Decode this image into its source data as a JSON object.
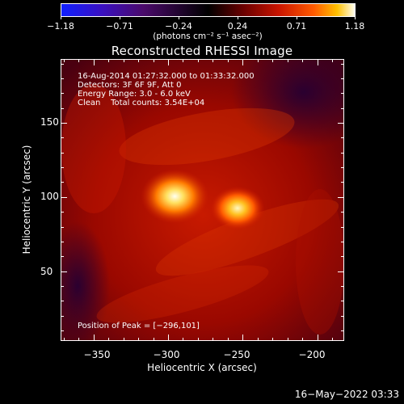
{
  "colorbar": {
    "ticks": [
      "−1.18",
      "−0.71",
      "−0.24",
      "0.24",
      "0.71",
      "1.18"
    ],
    "units": "(photons cm⁻² s⁻¹ asec⁻²)",
    "colors": [
      "#1020ff",
      "#000000",
      "#c81400",
      "#ffc000",
      "#fffff0"
    ]
  },
  "title": "Reconstructed RHESSI Image",
  "info": {
    "line1": "16-Aug-2014 01:27:32.000 to 01:33:32.000",
    "line2": "Detectors: 3F 6F 9F, Att 0",
    "line3": "Energy Range: 3.0 - 6.0 keV",
    "line4": "Clean    Total counts: 3.54E+04"
  },
  "peak": "Position of Peak = [−296,101]",
  "x_axis": {
    "label": "Heliocentric X (arcsec)",
    "ticks": [
      "−350",
      "−300",
      "−250",
      "−200"
    ],
    "range": [
      -372,
      -182
    ]
  },
  "y_axis": {
    "label": "Heliocentric Y (arcsec)",
    "ticks": [
      "150",
      "100",
      "50"
    ],
    "range": [
      3,
      193
    ]
  },
  "sources": [
    {
      "x": -296,
      "y": 101,
      "level": 1.18
    },
    {
      "x": -254,
      "y": 93,
      "level": 1.0
    }
  ],
  "timestamp": "16−May−2022 03:33"
}
